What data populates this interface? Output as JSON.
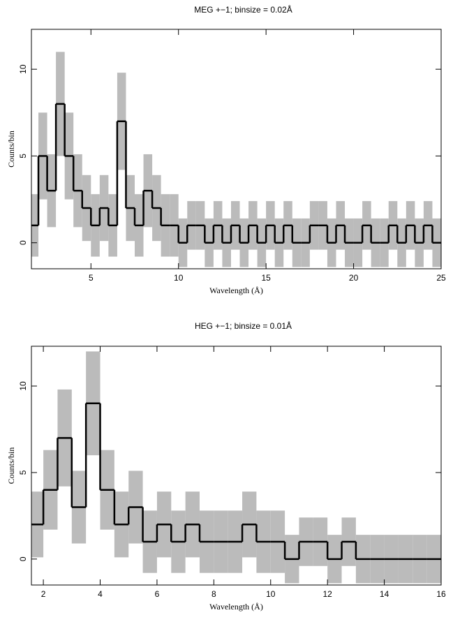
{
  "chart_data": [
    {
      "type": "step",
      "title": "MEG +−1; binsize = 0.02Å",
      "xlabel": "Wavelength (Å)",
      "ylabel": "Counts/bin",
      "x": [
        1.5,
        2,
        2.5,
        3,
        3.5,
        4,
        4.5,
        5,
        5.5,
        6,
        6.5,
        7,
        7.5,
        8,
        8.5,
        9,
        9.5,
        10,
        10.5,
        11,
        11.5,
        12,
        12.5,
        13,
        13.5,
        14,
        14.5,
        15,
        15.5,
        16,
        16.5,
        17,
        17.5,
        18,
        18.5,
        19,
        19.5,
        20,
        20.5,
        21,
        21.5,
        22,
        22.5,
        23,
        23.5,
        24,
        24.5
      ],
      "values": [
        1,
        5,
        3,
        8,
        5,
        3,
        2,
        1,
        2,
        1,
        7,
        2,
        1,
        3,
        2,
        1,
        1,
        0,
        1,
        1,
        0,
        1,
        0,
        1,
        0,
        1,
        0,
        1,
        0,
        1,
        0,
        0,
        1,
        1,
        0,
        1,
        0,
        0,
        1,
        0,
        0,
        1,
        0,
        1,
        0,
        1,
        0
      ],
      "errors": [
        1.8,
        2.5,
        2.1,
        3,
        2.5,
        2.1,
        1.9,
        1.8,
        1.9,
        1.8,
        2.8,
        1.9,
        1.8,
        2.1,
        1.9,
        1.8,
        1.8,
        1.4,
        1.4,
        1.4,
        1.4,
        1.4,
        1.4,
        1.4,
        1.4,
        1.4,
        1.4,
        1.4,
        1.4,
        1.4,
        1.4,
        1.4,
        1.4,
        1.4,
        1.4,
        1.4,
        1.4,
        1.4,
        1.4,
        1.4,
        1.4,
        1.4,
        1.4,
        1.4,
        1.4,
        1.4,
        1.4
      ],
      "color": "#000000",
      "band_color": "#bbbbbb",
      "xlim": [
        1.6,
        25
      ],
      "ylim": [
        -1.5,
        12.3
      ],
      "xticks": [
        5,
        10,
        15,
        20,
        25
      ],
      "yticks": [
        0,
        5,
        10
      ]
    },
    {
      "type": "step",
      "title": "HEG +−1; binsize = 0.01Å",
      "xlabel": "Wavelength (Å)",
      "ylabel": "Counts/bin",
      "x": [
        1.5,
        2,
        2.5,
        3,
        3.5,
        4,
        4.5,
        5,
        5.5,
        6,
        6.5,
        7,
        7.5,
        8,
        8.5,
        9,
        9.5,
        10,
        10.5,
        11,
        11.5,
        12,
        12.5,
        13,
        13.5,
        14,
        14.5,
        15,
        15.5
      ],
      "values": [
        2,
        4,
        7,
        3,
        9,
        4,
        2,
        3,
        1,
        2,
        1,
        2,
        1,
        1,
        1,
        2,
        1,
        1,
        0,
        1,
        1,
        0,
        1,
        0,
        0,
        0,
        0,
        0,
        0
      ],
      "errors": [
        1.9,
        2.3,
        2.8,
        2.1,
        3,
        2.3,
        1.9,
        2.1,
        1.8,
        1.9,
        1.8,
        1.9,
        1.8,
        1.8,
        1.8,
        1.9,
        1.8,
        1.8,
        1.4,
        1.4,
        1.4,
        1.4,
        1.4,
        1.4,
        1.4,
        1.4,
        1.4,
        1.4,
        1.4
      ],
      "color": "#000000",
      "band_color": "#bbbbbb",
      "xlim": [
        1.58,
        16
      ],
      "ylim": [
        -1.5,
        12.3
      ],
      "xticks": [
        2,
        4,
        6,
        8,
        10,
        12,
        14,
        16
      ],
      "yticks": [
        0,
        5,
        10
      ]
    }
  ]
}
